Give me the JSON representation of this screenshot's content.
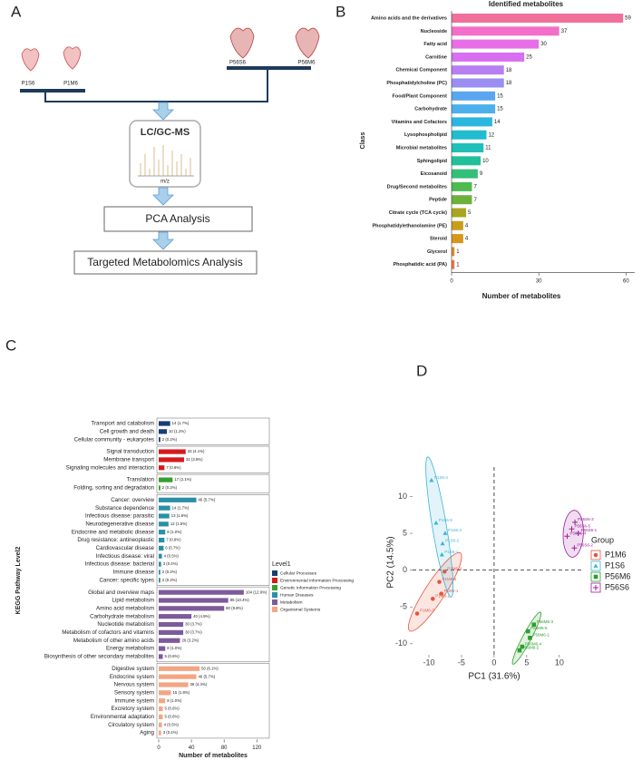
{
  "panel_labels": [
    "A",
    "B",
    "C",
    "D"
  ],
  "diagram": {
    "samples": [
      "P1S6",
      "P1M6",
      "P56S6",
      "P56M6"
    ],
    "instrument": "LC/GC-MS",
    "spectrum_axis": "m/z",
    "steps": [
      "PCA Analysis",
      "Targeted Metabolomics Analysis"
    ]
  },
  "chart_data": [
    {
      "type": "bar",
      "orientation": "horizontal",
      "title": "Identified metabolites",
      "xlabel": "Number of metabolites",
      "ylabel": "Class",
      "categories": [
        "Amino acids and the derivatives",
        "Nucleoside",
        "Fatty acid",
        "Carnitine",
        "Chemical Component",
        "Phosphatidylcholine (PC)",
        "Food/Plant Component",
        "Carbohydrate",
        "Vitamins and Cofactors",
        "Lysophospholipid",
        "Microbial metabolites",
        "Sphingolipid",
        "Eicosanoid",
        "Drug/Second metabolites",
        "Peptide",
        "Citrate cycle (TCA cycle)",
        "Phosphatidylethanolamine (PE)",
        "Steroid",
        "Glycerol",
        "Phosphatidic acid (PA)"
      ],
      "values": [
        59,
        37,
        30,
        25,
        18,
        18,
        15,
        15,
        14,
        12,
        11,
        10,
        9,
        7,
        7,
        5,
        4,
        4,
        1,
        1
      ],
      "colors": [
        "#f0709a",
        "#f26ec8",
        "#e86ee8",
        "#d86ef0",
        "#b87ff2",
        "#9a8ef2",
        "#5aa6f0",
        "#4cb0ec",
        "#2bb6e0",
        "#20bcd0",
        "#20c0b8",
        "#22c09a",
        "#34bf78",
        "#4cbb50",
        "#6cb23a",
        "#a8a620",
        "#c89e1c",
        "#d8961a",
        "#e48a2a",
        "#ee7a4a"
      ],
      "xlim": [
        0,
        63
      ],
      "xticks": [
        0,
        30,
        60
      ]
    },
    {
      "type": "grouped-bar",
      "orientation": "horizontal",
      "xlabel": "Number of metabolites",
      "ylabel": "KEGG Pathway Level2",
      "legend_title": "Level1",
      "xlim": [
        0,
        133
      ],
      "xticks": [
        0,
        40,
        80,
        120
      ],
      "groups": [
        {
          "name": "Cellular Processes",
          "color": "#173e74",
          "categories": [
            "Transport and catabolism",
            "Cell growth and death",
            "Cellular community - eukaryotes"
          ],
          "values": [
            14,
            10,
            2
          ],
          "value_labels": [
            "14 (1.7%)",
            "10 (1.2%)",
            "2 (0.2%)"
          ]
        },
        {
          "name": "Environmental Information Processing",
          "color": "#d7191c",
          "categories": [
            "Signal transduction",
            "Membrane transport",
            "Signaling molecules and interaction"
          ],
          "values": [
            33,
            31,
            7
          ],
          "value_labels": [
            "33 (4.1%)",
            "31 (3.8%)",
            "7 (0.9%)"
          ]
        },
        {
          "name": "Genetic Information Processing",
          "color": "#33a02c",
          "categories": [
            "Translation",
            "Folding, sorting and degradation"
          ],
          "values": [
            17,
            2
          ],
          "value_labels": [
            "17 (2.1%)",
            "2 (0.2%)"
          ]
        },
        {
          "name": "Human Diseases",
          "color": "#2a8fa8",
          "categories": [
            "Cancer: overview",
            "Substance dependence",
            "Infectious disease: parasitic",
            "Neurodegenerative disease",
            "Endocrine and metabolic disease",
            "Drug resistance: antineoplastic",
            "Cardiovascular disease",
            "Infectious disease: viral",
            "Infectious disease: bacterial",
            "Immune disease",
            "Cancer: specific types"
          ],
          "values": [
            46,
            14,
            13,
            12,
            8,
            7,
            6,
            4,
            3,
            2,
            2
          ],
          "value_labels": [
            "46 (5.7%)",
            "14 (1.7%)",
            "13 (1.6%)",
            "12 (1.5%)",
            "8 (1.0%)",
            "7 (0.9%)",
            "6 (0.7%)",
            "4 (0.5%)",
            "3 (0.4%)",
            "2 (0.2%)",
            "2 (0.2%)"
          ]
        },
        {
          "name": "Metabolism",
          "color": "#7d5a9c",
          "categories": [
            "Global and overview maps",
            "Lipid metabolism",
            "Amino acid metabolism",
            "Carbohydrate metabolism",
            "Nucleotide metabolism",
            "Metabolism of cofactors and vitamins",
            "Metabolism of other amino acids",
            "Energy metabolism",
            "Biosynthesis of other secondary metabolites"
          ],
          "values": [
            104,
            85,
            80,
            40,
            30,
            30,
            26,
            8,
            5
          ],
          "value_labels": [
            "104 (12.9%)",
            "85 (10.4%)",
            "80 (9.8%)",
            "40 (4.9%)",
            "30 (3.7%)",
            "30 (3.7%)",
            "26 (3.2%)",
            "8 (1.0%)",
            "5 (0.6%)"
          ]
        },
        {
          "name": "Organismal Systems",
          "color": "#f4a582",
          "categories": [
            "Digestive system",
            "Endocrine system",
            "Nervous system",
            "Sensory system",
            "Immune system",
            "Excretory system",
            "Environmental adaptation",
            "Circulatory system",
            "Aging"
          ],
          "values": [
            50,
            46,
            36,
            15,
            8,
            5,
            5,
            4,
            3
          ],
          "value_labels": [
            "50 (6.1%)",
            "46 (5.7%)",
            "36 (4.4%)",
            "15 (1.8%)",
            "8 (1.0%)",
            "5 (0.6%)",
            "5 (0.6%)",
            "4 (0.5%)",
            "3 (0.4%)"
          ]
        }
      ]
    },
    {
      "type": "scatter",
      "xlabel": "PC1 (31.6%)",
      "ylabel": "PC2 (14.5%)",
      "legend_title": "Group",
      "xlim": [
        -12.5,
        13.5
      ],
      "ylim": [
        -11.5,
        14
      ],
      "xticks": [
        -10,
        -5,
        0,
        5,
        10
      ],
      "yticks": [
        -10,
        -5,
        0,
        5,
        10
      ],
      "series": [
        {
          "name": "P1M6",
          "color": "#e8543f",
          "marker": "circle",
          "x": [
            -7.6,
            -8.4,
            -8.1,
            -9.4,
            -11.8
          ],
          "values": [
            -0.2,
            -1.6,
            -3.2,
            -3.9,
            -5.9
          ],
          "point_labels": [
            "P1M6-4",
            "P1M6-5",
            "P1M6-1",
            "P1M6-2",
            "P1M6-3"
          ]
        },
        {
          "name": "P1S6",
          "color": "#3fb3d8",
          "marker": "triangle",
          "x": [
            -9.6,
            -8.9,
            -7.5,
            -7.9,
            -8.0
          ],
          "values": [
            12.2,
            6.4,
            5.0,
            3.6,
            2.1
          ],
          "point_labels": [
            "P1S6-4",
            "P1S6-5",
            "P1S6-3",
            "P1S6-2",
            "P1S6-1"
          ]
        },
        {
          "name": "P56M6",
          "color": "#2ca02c",
          "marker": "square",
          "x": [
            6.1,
            5.2,
            5.5,
            4.3,
            3.9
          ],
          "values": [
            -7.4,
            -8.3,
            -9.2,
            -10.4,
            -10.9
          ],
          "point_labels": [
            "P56M6-3",
            "P56M6-5",
            "P56M6-1",
            "P56M6-4",
            "P56M6-2"
          ]
        },
        {
          "name": "P56S6",
          "color": "#9b1f9b",
          "marker": "plus",
          "x": [
            12.4,
            11.9,
            12.9,
            11.2,
            12.3
          ],
          "values": [
            6.5,
            5.6,
            5.0,
            4.6,
            3.0
          ],
          "point_labels": [
            "P56S6-3",
            "P56S6-5",
            "P56S6-1",
            "P56S6-4",
            "P56S6-2"
          ]
        }
      ]
    }
  ]
}
